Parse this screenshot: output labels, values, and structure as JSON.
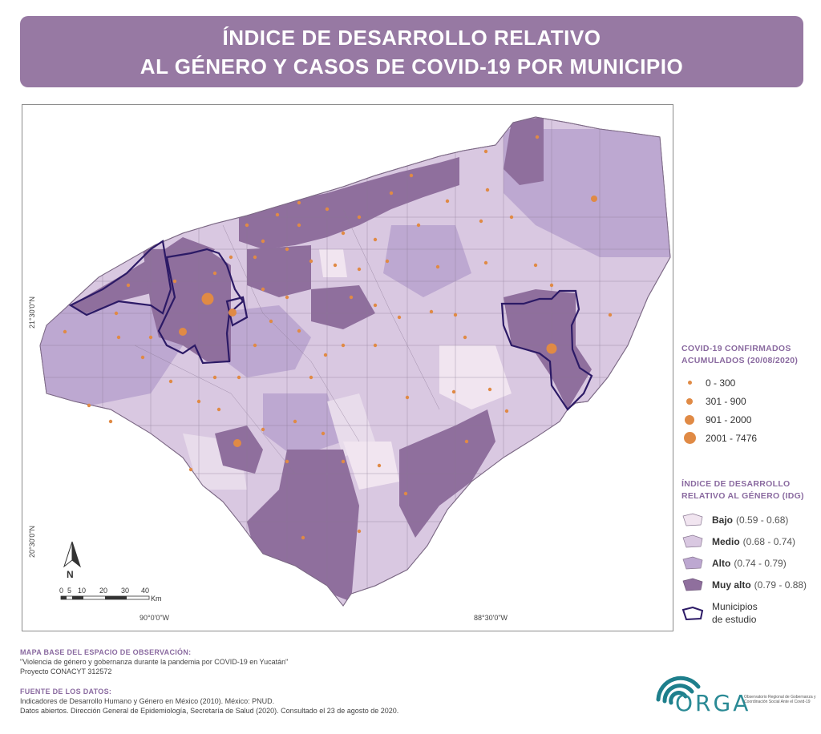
{
  "title": {
    "line1": "ÍNDICE DE DESARROLLO RELATIVO",
    "line2": "AL GÉNERO Y CASOS DE COVID-19 POR MUNICIPIO"
  },
  "map": {
    "lat_labels": [
      "21°30'0\"N",
      "20°30'0\"N"
    ],
    "lon_labels": [
      "90°0'0\"W",
      "88°30'0\"W"
    ],
    "north_label": "N",
    "scale_ticks": [
      "0",
      "5",
      "10",
      "20",
      "30",
      "40"
    ],
    "scale_unit": "Km"
  },
  "legend_covid": {
    "heading_line1": "COVID-19 CONFIRMADOS",
    "heading_line2": "ACUMULADOS (20/08/2020)",
    "items": [
      {
        "label": "0 - 300"
      },
      {
        "label": "301 - 900"
      },
      {
        "label": "901 - 2000"
      },
      {
        "label": "2001 - 7476"
      }
    ],
    "dot_color": "#e08a45"
  },
  "legend_idg": {
    "heading_line1": "ÍNDICE DE DESARROLLO",
    "heading_line2": "RELATIVO AL GÉNERO (IDG)",
    "items": [
      {
        "name": "Bajo",
        "range": "(0.59 - 0.68)",
        "color": "#f1e5f0"
      },
      {
        "name": "Medio",
        "range": "(0.68 - 0.74)",
        "color": "#d9c8e1"
      },
      {
        "name": "Alto",
        "range": "(0.74 - 0.79)",
        "color": "#bda8d1"
      },
      {
        "name": "Muy alto",
        "range": "(0.79 - 0.88)",
        "color": "#8f6f9d"
      }
    ],
    "study_line1": "Municipios",
    "study_line2": "de estudio",
    "study_color": "#2c1a66"
  },
  "footer": {
    "base_heading": "MAPA BASE DEL ESPACIO DE OBSERVACIÓN:",
    "base_line1": "\"Violencia de género y gobernanza durante la pandemia por COVID-19 en Yucatán\"",
    "base_line2": "Proyecto CONACYT 312572",
    "source_heading": "FUENTE DE LOS DATOS:",
    "source_line1": "Indicadores de Desarrollo Humano y Género en México (2010). México: PNUD.",
    "source_line2": "Datos abiertos. Dirección General de Epidemiología, Secretaría de Salud (2020). Consultado el 23 de agosto de 2020."
  },
  "logo": {
    "name": "ORGA",
    "subtitle": "Observatorio Regional de Gobernanza y Coordinación Social Ante el Covid-19"
  }
}
